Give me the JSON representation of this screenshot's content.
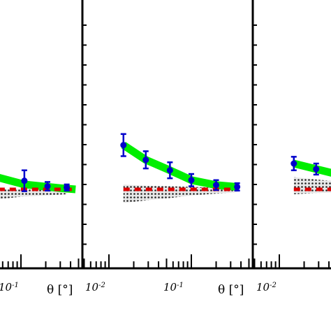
{
  "chart_data": [
    {
      "type": "line",
      "panel": "left",
      "xscale": "log",
      "xlabel": "θ [°]",
      "xlim": [
        0.006,
        0.46
      ],
      "ylim": [
        -0.4,
        1.6
      ],
      "tick_labels": [
        "10-1"
      ],
      "series": [
        {
          "role": "model-band",
          "color": "#00ee00",
          "x": [
            0.006,
            0.03,
            0.11,
            0.3,
            0.46
          ],
          "y": [
            0.38,
            0.28,
            0.08,
            0.02,
            0.0
          ]
        },
        {
          "role": "measured",
          "color": "#0000cc",
          "x": [
            0.11,
            0.21,
            0.36
          ],
          "y": [
            0.14,
            0.05,
            0.03
          ],
          "yerr": [
            0.17,
            0.07,
            0.05
          ]
        },
        {
          "role": "uncertainty-region",
          "x": [
            0.006,
            0.1,
            0.2,
            0.36
          ],
          "y_low": [
            -0.3,
            -0.12,
            -0.1,
            -0.08
          ],
          "y_high": [
            0.0,
            0.0,
            0.0,
            0.0
          ]
        },
        {
          "role": "reference-zero",
          "color": "#dd0000",
          "x": [
            0.006,
            0.46
          ],
          "y": [
            0.0,
            0.0
          ]
        }
      ]
    },
    {
      "type": "line",
      "panel": "middle",
      "xscale": "log",
      "xlabel": "θ [°]",
      "xlim": [
        0.006,
        0.46
      ],
      "ylim": [
        -0.4,
        1.6
      ],
      "tick_labels": [
        "10-2",
        "10-1"
      ],
      "series": [
        {
          "role": "model-band",
          "color": "#00ee00",
          "x": [
            0.015,
            0.028,
            0.055,
            0.1,
            0.2,
            0.36
          ],
          "y": [
            0.72,
            0.48,
            0.31,
            0.15,
            0.07,
            0.04
          ]
        },
        {
          "role": "measured",
          "color": "#0000cc",
          "x": [
            0.015,
            0.028,
            0.055,
            0.1,
            0.2,
            0.36
          ],
          "y": [
            0.72,
            0.48,
            0.31,
            0.15,
            0.07,
            0.04
          ],
          "yerr": [
            0.18,
            0.14,
            0.13,
            0.1,
            0.08,
            0.06
          ]
        },
        {
          "role": "uncertainty-region",
          "x": [
            0.015,
            0.028,
            0.055,
            0.1,
            0.2,
            0.36
          ],
          "y_low": [
            -0.22,
            -0.18,
            -0.14,
            -0.1,
            -0.07,
            -0.05
          ],
          "y_high": [
            0.08,
            0.06,
            0.05,
            0.04,
            0.03,
            0.02
          ]
        },
        {
          "role": "reference-zero",
          "color": "#dd0000",
          "x": [
            0.015,
            0.36
          ],
          "y": [
            0.0,
            0.0
          ]
        }
      ]
    },
    {
      "type": "line",
      "panel": "right",
      "xscale": "log",
      "xlabel": "",
      "xlim": [
        0.006,
        0.46
      ],
      "ylim": [
        -0.4,
        1.6
      ],
      "tick_labels": [
        "10-2"
      ],
      "series": [
        {
          "role": "model-band",
          "color": "#00ee00",
          "x": [
            0.015,
            0.028,
            0.06
          ],
          "y": [
            0.42,
            0.33,
            0.22
          ]
        },
        {
          "role": "measured",
          "color": "#0000cc",
          "x": [
            0.015,
            0.028
          ],
          "y": [
            0.42,
            0.33
          ],
          "yerr": [
            0.11,
            0.09
          ]
        },
        {
          "role": "uncertainty-region",
          "x": [
            0.015,
            0.028,
            0.06
          ],
          "y_low": [
            -0.08,
            -0.06,
            -0.05
          ],
          "y_high": [
            0.2,
            0.16,
            0.12
          ]
        },
        {
          "role": "reference-zero",
          "color": "#dd0000",
          "x": [
            0.015,
            0.06
          ],
          "y": [
            0.0,
            0.0
          ]
        }
      ]
    }
  ],
  "labels": {
    "left_tick": "10",
    "left_tick_exp": "-1",
    "left_axis_title": "θ [°]",
    "middle_tick_a": "10",
    "middle_tick_a_exp": "-2",
    "middle_tick_b": "10",
    "middle_tick_b_exp": "-1",
    "middle_axis_title": "θ [°]",
    "right_tick": "10",
    "right_tick_exp": "-2"
  }
}
